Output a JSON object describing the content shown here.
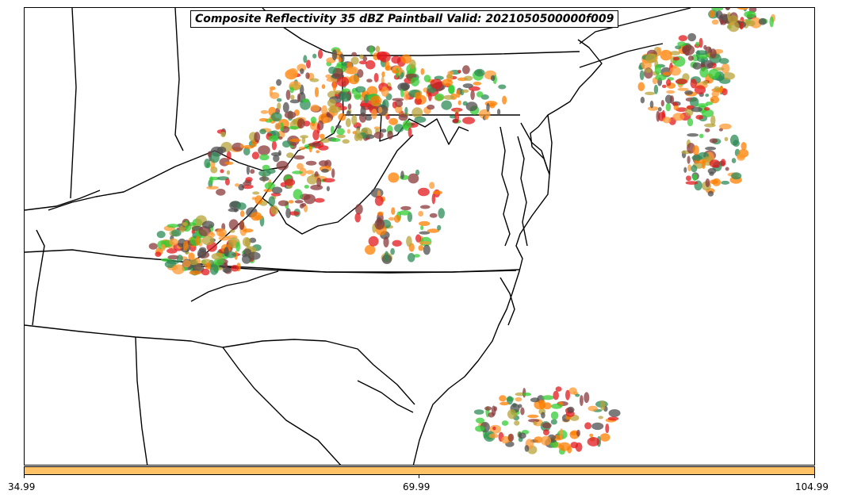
{
  "title": "Composite Reflectivity 35 dBZ Paintball Valid: 2021050500000f009",
  "colorbar": {
    "color": "#ffc266",
    "ticks": [
      "34.99",
      "69.99",
      "104.99"
    ]
  },
  "paintball_colors": [
    "#e31a1c",
    "#ff7f00",
    "#33cc33",
    "#b8a33a",
    "#8b3a3a",
    "#4f4f4f",
    "#2e8b57",
    "#ff9933"
  ],
  "map_style": {
    "border_color": "#000000",
    "background": "#ffffff"
  }
}
